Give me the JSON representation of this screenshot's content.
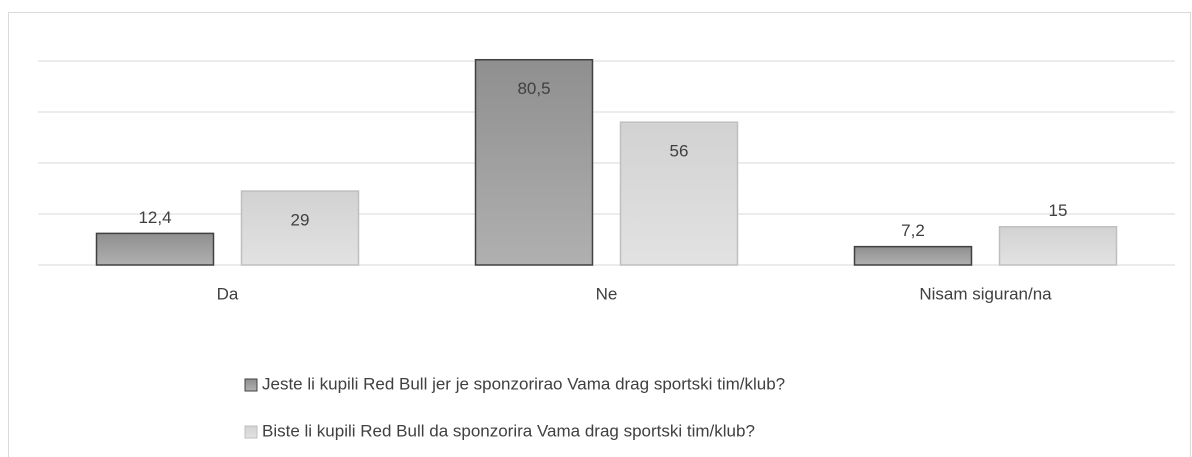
{
  "chart_data": {
    "type": "bar",
    "categories": [
      "Da",
      "Ne",
      "Nisam siguran/na"
    ],
    "series": [
      {
        "name": "Jeste li kupili Red Bull jer je sponzorirao Vama drag sportski tim/klub?",
        "color": "#a0a0a0",
        "values": [
          12.4,
          80.5,
          7.2
        ],
        "value_labels": [
          "12,4",
          "80,5",
          "7,2"
        ]
      },
      {
        "name": "Biste li kupili Red Bull da sponzorira Vama drag sportski tim/klub?",
        "color": "#d9d9d9",
        "values": [
          29,
          56,
          15
        ]
      }
    ],
    "ylim": [
      0,
      80
    ],
    "yticks": [
      0,
      20,
      40,
      60,
      80
    ],
    "grid": true,
    "legend": "bottom"
  }
}
